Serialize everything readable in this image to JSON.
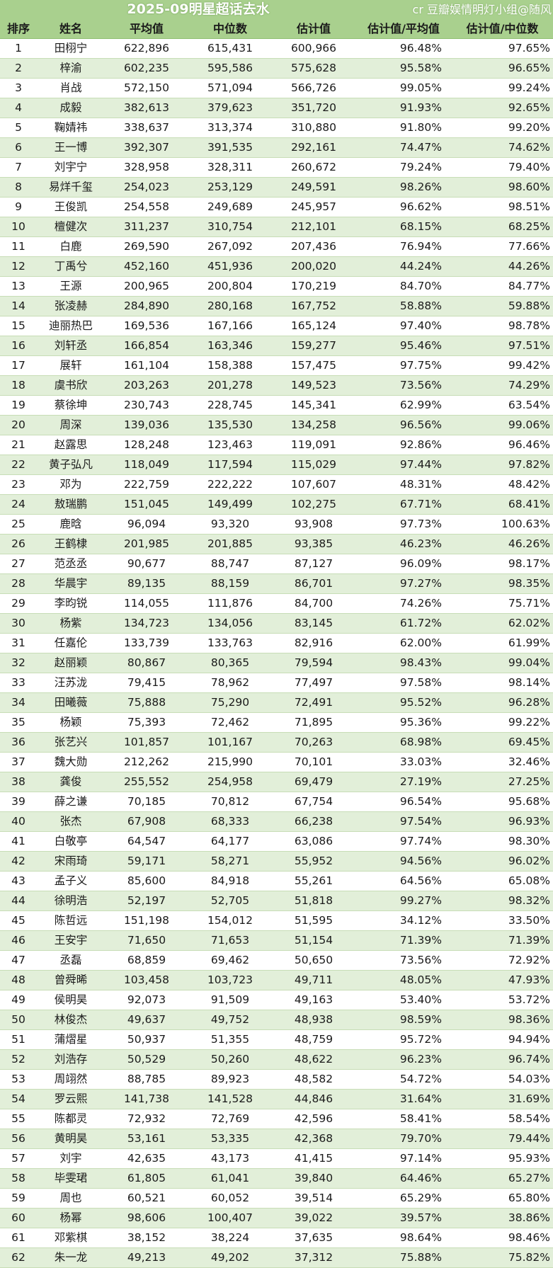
{
  "title": "2025-09明星超话去水",
  "watermark": "cr 豆瓣娱情明灯小组@随风",
  "columns": [
    "排序",
    "姓名",
    "平均值",
    "中位数",
    "估计值",
    "估计值/平均值",
    "估计值/中位数"
  ],
  "rows": [
    [
      "1",
      "田栩宁",
      "622,896",
      "615,431",
      "600,966",
      "96.48%",
      "97.65%"
    ],
    [
      "2",
      "梓渝",
      "602,235",
      "595,586",
      "575,628",
      "95.58%",
      "96.65%"
    ],
    [
      "3",
      "肖战",
      "572,150",
      "571,094",
      "566,726",
      "99.05%",
      "99.24%"
    ],
    [
      "4",
      "成毅",
      "382,613",
      "379,623",
      "351,720",
      "91.93%",
      "92.65%"
    ],
    [
      "5",
      "鞠婧祎",
      "338,637",
      "313,374",
      "310,880",
      "91.80%",
      "99.20%"
    ],
    [
      "6",
      "王一博",
      "392,307",
      "391,535",
      "292,161",
      "74.47%",
      "74.62%"
    ],
    [
      "7",
      "刘宇宁",
      "328,958",
      "328,311",
      "260,672",
      "79.24%",
      "79.40%"
    ],
    [
      "8",
      "易烊千玺",
      "254,023",
      "253,129",
      "249,591",
      "98.26%",
      "98.60%"
    ],
    [
      "9",
      "王俊凯",
      "254,558",
      "249,689",
      "245,957",
      "96.62%",
      "98.51%"
    ],
    [
      "10",
      "檀健次",
      "311,237",
      "310,754",
      "212,101",
      "68.15%",
      "68.25%"
    ],
    [
      "11",
      "白鹿",
      "269,590",
      "267,092",
      "207,436",
      "76.94%",
      "77.66%"
    ],
    [
      "12",
      "丁禹兮",
      "452,160",
      "451,936",
      "200,020",
      "44.24%",
      "44.26%"
    ],
    [
      "13",
      "王源",
      "200,965",
      "200,804",
      "170,219",
      "84.70%",
      "84.77%"
    ],
    [
      "14",
      "张凌赫",
      "284,890",
      "280,168",
      "167,752",
      "58.88%",
      "59.88%"
    ],
    [
      "15",
      "迪丽热巴",
      "169,536",
      "167,166",
      "165,124",
      "97.40%",
      "98.78%"
    ],
    [
      "16",
      "刘轩丞",
      "166,854",
      "163,346",
      "159,277",
      "95.46%",
      "97.51%"
    ],
    [
      "17",
      "展轩",
      "161,104",
      "158,388",
      "157,475",
      "97.75%",
      "99.42%"
    ],
    [
      "18",
      "虞书欣",
      "203,263",
      "201,278",
      "149,523",
      "73.56%",
      "74.29%"
    ],
    [
      "19",
      "蔡徐坤",
      "230,743",
      "228,745",
      "145,341",
      "62.99%",
      "63.54%"
    ],
    [
      "20",
      "周深",
      "139,036",
      "135,530",
      "134,258",
      "96.56%",
      "99.06%"
    ],
    [
      "21",
      "赵露思",
      "128,248",
      "123,463",
      "119,091",
      "92.86%",
      "96.46%"
    ],
    [
      "22",
      "黄子弘凡",
      "118,049",
      "117,594",
      "115,029",
      "97.44%",
      "97.82%"
    ],
    [
      "23",
      "邓为",
      "222,759",
      "222,222",
      "107,607",
      "48.31%",
      "48.42%"
    ],
    [
      "24",
      "敖瑞鹏",
      "151,045",
      "149,499",
      "102,275",
      "67.71%",
      "68.41%"
    ],
    [
      "25",
      "鹿晗",
      "96,094",
      "93,320",
      "93,908",
      "97.73%",
      "100.63%"
    ],
    [
      "26",
      "王鹤棣",
      "201,985",
      "201,885",
      "93,385",
      "46.23%",
      "46.26%"
    ],
    [
      "27",
      "范丞丞",
      "90,677",
      "88,747",
      "87,127",
      "96.09%",
      "98.17%"
    ],
    [
      "28",
      "华晨宇",
      "89,135",
      "88,159",
      "86,701",
      "97.27%",
      "98.35%"
    ],
    [
      "29",
      "李昀锐",
      "114,055",
      "111,876",
      "84,700",
      "74.26%",
      "75.71%"
    ],
    [
      "30",
      "杨紫",
      "134,723",
      "134,056",
      "83,145",
      "61.72%",
      "62.02%"
    ],
    [
      "31",
      "任嘉伦",
      "133,739",
      "133,763",
      "82,916",
      "62.00%",
      "61.99%"
    ],
    [
      "32",
      "赵丽颖",
      "80,867",
      "80,365",
      "79,594",
      "98.43%",
      "99.04%"
    ],
    [
      "33",
      "汪苏泷",
      "79,415",
      "78,962",
      "77,497",
      "97.58%",
      "98.14%"
    ],
    [
      "34",
      "田曦薇",
      "75,888",
      "75,290",
      "72,491",
      "95.52%",
      "96.28%"
    ],
    [
      "35",
      "杨颖",
      "75,393",
      "72,462",
      "71,895",
      "95.36%",
      "99.22%"
    ],
    [
      "36",
      "张艺兴",
      "101,857",
      "101,167",
      "70,263",
      "68.98%",
      "69.45%"
    ],
    [
      "37",
      "魏大勋",
      "212,262",
      "215,990",
      "70,101",
      "33.03%",
      "32.46%"
    ],
    [
      "38",
      "龚俊",
      "255,552",
      "254,958",
      "69,479",
      "27.19%",
      "27.25%"
    ],
    [
      "39",
      "薛之谦",
      "70,185",
      "70,812",
      "67,754",
      "96.54%",
      "95.68%"
    ],
    [
      "40",
      "张杰",
      "67,908",
      "68,333",
      "66,238",
      "97.54%",
      "96.93%"
    ],
    [
      "41",
      "白敬亭",
      "64,547",
      "64,177",
      "63,086",
      "97.74%",
      "98.30%"
    ],
    [
      "42",
      "宋雨琦",
      "59,171",
      "58,271",
      "55,952",
      "94.56%",
      "96.02%"
    ],
    [
      "43",
      "孟子义",
      "85,600",
      "84,918",
      "55,261",
      "64.56%",
      "65.08%"
    ],
    [
      "44",
      "徐明浩",
      "52,197",
      "52,705",
      "51,818",
      "99.27%",
      "98.32%"
    ],
    [
      "45",
      "陈哲远",
      "151,198",
      "154,012",
      "51,595",
      "34.12%",
      "33.50%"
    ],
    [
      "46",
      "王安宇",
      "71,650",
      "71,653",
      "51,154",
      "71.39%",
      "71.39%"
    ],
    [
      "47",
      "丞磊",
      "68,859",
      "69,462",
      "50,650",
      "73.56%",
      "72.92%"
    ],
    [
      "48",
      "曾舜晞",
      "103,458",
      "103,723",
      "49,711",
      "48.05%",
      "47.93%"
    ],
    [
      "49",
      "侯明昊",
      "92,073",
      "91,509",
      "49,163",
      "53.40%",
      "53.72%"
    ],
    [
      "50",
      "林俊杰",
      "49,637",
      "49,752",
      "48,938",
      "98.59%",
      "98.36%"
    ],
    [
      "51",
      "蒲熠星",
      "50,937",
      "51,355",
      "48,759",
      "95.72%",
      "94.94%"
    ],
    [
      "52",
      "刘浩存",
      "50,529",
      "50,260",
      "48,622",
      "96.23%",
      "96.74%"
    ],
    [
      "53",
      "周翊然",
      "88,785",
      "89,923",
      "48,582",
      "54.72%",
      "54.03%"
    ],
    [
      "54",
      "罗云熙",
      "141,738",
      "141,528",
      "44,846",
      "31.64%",
      "31.69%"
    ],
    [
      "55",
      "陈都灵",
      "72,932",
      "72,769",
      "42,596",
      "58.41%",
      "58.54%"
    ],
    [
      "56",
      "黄明昊",
      "53,161",
      "53,335",
      "42,368",
      "79.70%",
      "79.44%"
    ],
    [
      "57",
      "刘宇",
      "42,635",
      "43,173",
      "41,415",
      "97.14%",
      "95.93%"
    ],
    [
      "58",
      "毕雯珺",
      "61,805",
      "61,041",
      "39,840",
      "64.46%",
      "65.27%"
    ],
    [
      "59",
      "周也",
      "60,521",
      "60,052",
      "39,514",
      "65.29%",
      "65.80%"
    ],
    [
      "60",
      "杨幂",
      "98,606",
      "100,407",
      "39,022",
      "39.57%",
      "38.86%"
    ],
    [
      "61",
      "邓紫棋",
      "38,152",
      "38,224",
      "37,635",
      "98.64%",
      "98.46%"
    ],
    [
      "62",
      "朱一龙",
      "49,213",
      "49,202",
      "37,312",
      "75.88%",
      "75.82%"
    ]
  ]
}
